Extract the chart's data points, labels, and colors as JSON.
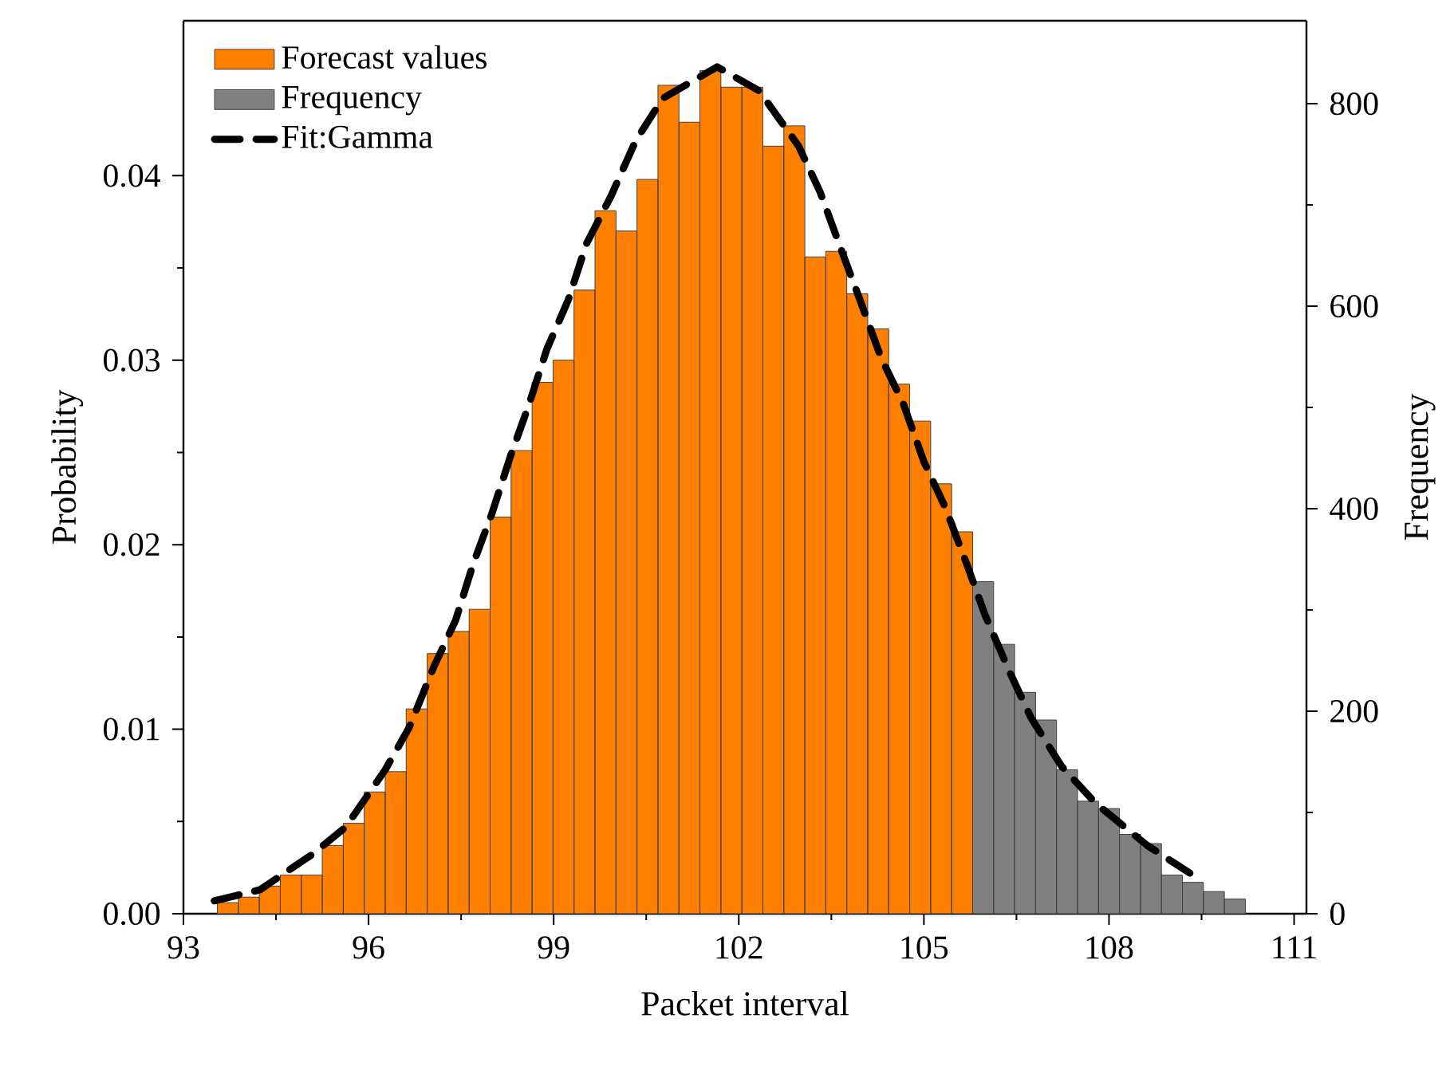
{
  "chart_data": {
    "type": "histogram",
    "xlabel": "Packet interval",
    "ylabel": "Probability",
    "y2label": "Frequency",
    "bins": [
      93.55,
      93.89,
      94.23,
      94.57,
      94.91,
      95.25,
      95.59,
      95.93,
      96.27,
      96.61,
      96.95,
      97.29,
      97.63,
      97.97,
      98.31,
      98.65,
      98.99,
      99.33,
      99.67,
      100.01,
      100.35,
      100.69,
      101.03,
      101.37,
      101.71,
      102.05,
      102.39,
      102.73,
      103.07,
      103.41,
      103.75,
      104.09,
      104.43,
      104.77,
      105.11,
      105.45,
      105.79,
      106.13,
      106.47,
      106.81,
      107.15,
      107.49,
      107.83,
      108.17,
      108.51,
      108.85,
      109.19,
      109.53,
      109.87,
      110.21
    ],
    "series": [
      {
        "name": "Forecast values",
        "color": "#ff8000",
        "values": [
          0.0006,
          0.0009,
          0.0015,
          0.0021,
          0.0021,
          0.0037,
          0.0049,
          0.0066,
          0.0077,
          0.0111,
          0.0141,
          0.0153,
          0.0165,
          0.0215,
          0.0251,
          0.0288,
          0.03,
          0.0338,
          0.0381,
          0.037,
          0.0398,
          0.0449,
          0.0429,
          0.0457,
          0.0448,
          0.0448,
          0.0416,
          0.0427,
          0.0356,
          0.0359,
          0.0336,
          0.0317,
          0.0287,
          0.0267,
          0.0233,
          0.0207,
          null,
          null,
          null,
          null,
          null,
          null,
          null,
          null,
          null,
          null,
          null,
          null,
          null
        ]
      },
      {
        "name": "Frequency",
        "color": "#808080",
        "values": [
          null,
          null,
          null,
          null,
          null,
          null,
          null,
          null,
          null,
          null,
          null,
          null,
          null,
          null,
          null,
          null,
          null,
          null,
          null,
          null,
          null,
          null,
          null,
          null,
          null,
          null,
          null,
          null,
          null,
          null,
          null,
          null,
          null,
          null,
          null,
          null,
          0.018,
          0.0146,
          0.012,
          0.0105,
          0.0078,
          0.0061,
          0.0057,
          0.0043,
          0.0038,
          0.0021,
          0.0017,
          0.0012,
          0.0008
        ]
      },
      {
        "name": "Fit:Gamma",
        "type": "line",
        "color": "#000000",
        "line_style": "dashed",
        "x": [
          93.5,
          94.24,
          95.08,
          95.63,
          96.27,
          96.66,
          97.06,
          97.41,
          97.7,
          98.0,
          98.3,
          98.59,
          98.89,
          99.24,
          99.53,
          99.93,
          100.33,
          100.77,
          101.65,
          102.33,
          102.97,
          103.32,
          103.67,
          103.96,
          104.31,
          104.66,
          105.0,
          105.35,
          105.7,
          105.99,
          106.39,
          106.74,
          107.23,
          107.78,
          108.62,
          109.31
        ],
        "values": [
          0.0007,
          0.0013,
          0.0032,
          0.0047,
          0.0078,
          0.0101,
          0.0134,
          0.0159,
          0.019,
          0.0217,
          0.0248,
          0.0275,
          0.0306,
          0.0333,
          0.0363,
          0.0389,
          0.0419,
          0.0442,
          0.0459,
          0.0446,
          0.0416,
          0.0391,
          0.0359,
          0.0333,
          0.0301,
          0.0277,
          0.0245,
          0.022,
          0.0189,
          0.0162,
          0.0131,
          0.0106,
          0.008,
          0.006,
          0.0037,
          0.0022
        ]
      }
    ],
    "xlim": [
      93,
      111.2
    ],
    "xticks": [
      93,
      96,
      99,
      102,
      105,
      108,
      111
    ],
    "ylim": [
      0,
      0.0484
    ],
    "yticks": [
      {
        "value": 0,
        "label": "0.00"
      },
      {
        "value": 0.01,
        "label": "0.01"
      },
      {
        "value": 0.02,
        "label": "0.02"
      },
      {
        "value": 0.03,
        "label": "0.03"
      },
      {
        "value": 0.04,
        "label": "0.04"
      }
    ],
    "y2lim": [
      0,
      882
    ],
    "y2ticks": [
      0,
      200,
      400,
      600,
      800
    ],
    "legend": "top left",
    "grid": false
  }
}
